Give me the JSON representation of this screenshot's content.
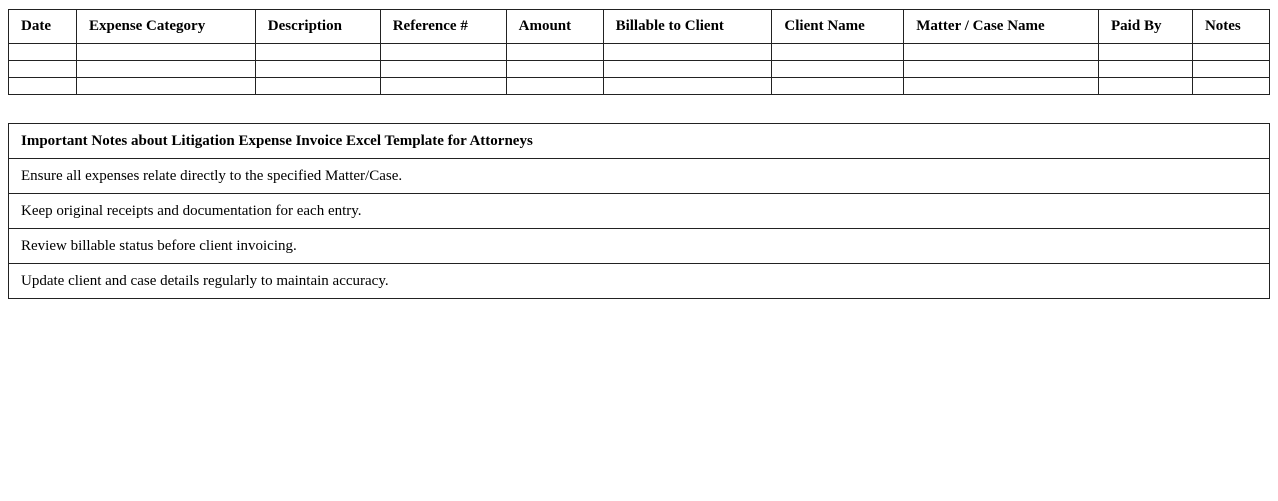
{
  "expense_table": {
    "headers": [
      "Date",
      "Expense Category",
      "Description",
      "Reference #",
      "Amount",
      "Billable to Client",
      "Client Name",
      "Matter / Case Name",
      "Paid By",
      "Notes"
    ],
    "empty_rows": 3
  },
  "notes": {
    "title": "Important Notes about Litigation Expense Invoice Excel Template for Attorneys",
    "items": [
      "Ensure all expenses relate directly to the specified Matter/Case.",
      "Keep original receipts and documentation for each entry.",
      "Review billable status before client invoicing.",
      "Update client and case details regularly to maintain accuracy."
    ]
  }
}
